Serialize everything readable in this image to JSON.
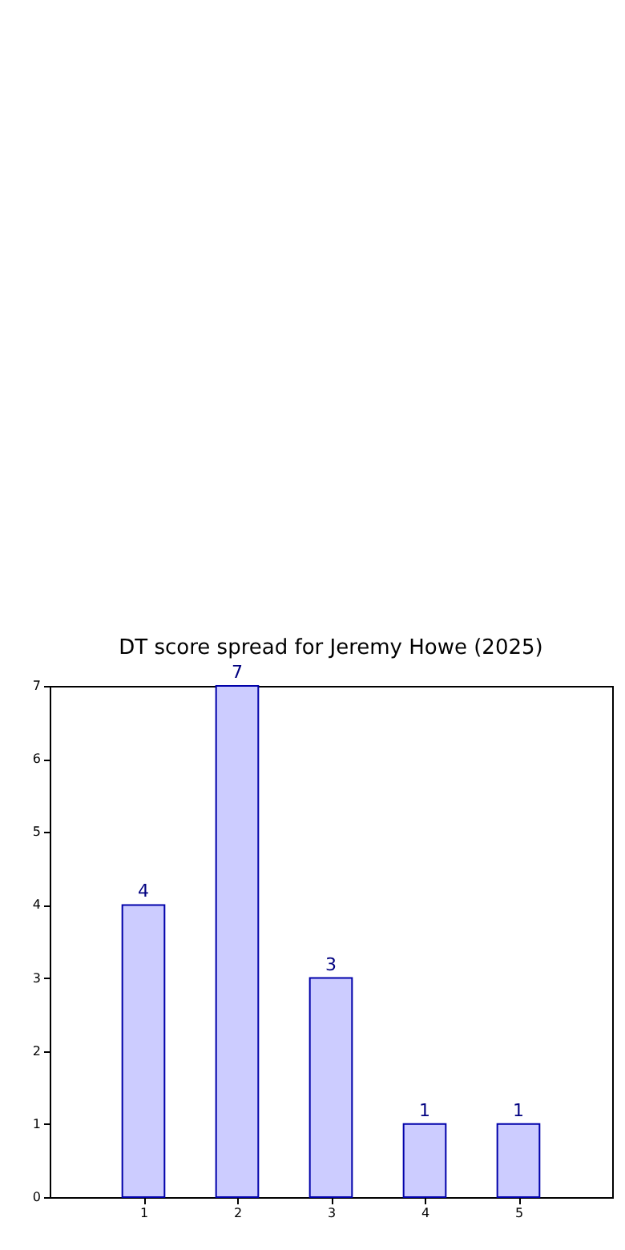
{
  "chart_data": {
    "type": "bar",
    "title": "DT score spread for Jeremy Howe (2025)",
    "x": [
      1,
      2,
      3,
      4,
      5
    ],
    "values": [
      4,
      7,
      3,
      1,
      1
    ],
    "color": "#ccccff",
    "xlim": [
      0,
      6
    ],
    "xticks": [
      1,
      2,
      3,
      4,
      5
    ],
    "ylim": [
      0,
      7
    ],
    "yticks": [
      0,
      1,
      2,
      3,
      4,
      5,
      6,
      7
    ],
    "data_labels": true,
    "grid": false
  }
}
